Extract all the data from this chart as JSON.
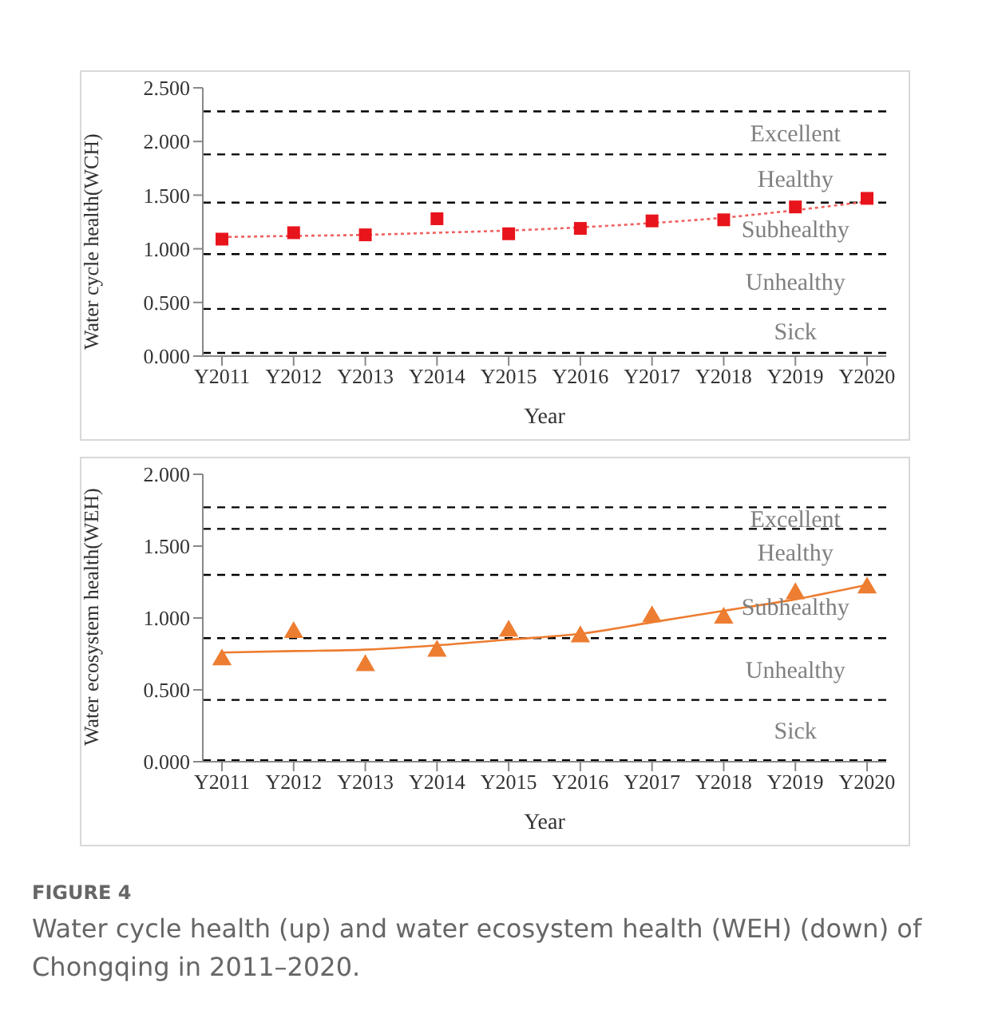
{
  "chart_data": [
    {
      "type": "scatter",
      "xlabel": "Year",
      "ylabel": "Water cycle health(WCH)",
      "categories": [
        "Y2011",
        "Y2012",
        "Y2013",
        "Y2014",
        "Y2015",
        "Y2016",
        "Y2017",
        "Y2018",
        "Y2019",
        "Y2020"
      ],
      "marker": "square",
      "grid": false,
      "legend": false,
      "series": [
        {
          "type": "scatter",
          "color": "#e8141c",
          "values": [
            1.09,
            1.15,
            1.13,
            1.28,
            1.14,
            1.19,
            1.26,
            1.27,
            1.39,
            1.47
          ]
        },
        {
          "type": "line",
          "color": "#f06060",
          "line_style": "dotted",
          "marker": "none",
          "values": [
            1.11,
            1.12,
            1.13,
            1.15,
            1.17,
            1.2,
            1.24,
            1.29,
            1.36,
            1.44
          ]
        }
      ],
      "ylim": [
        0,
        2.5
      ],
      "yticks": [
        {
          "value": 0,
          "label": "0.000"
        },
        {
          "value": 0.5,
          "label": "0.500"
        },
        {
          "value": 1,
          "label": "1.000"
        },
        {
          "value": 1.5,
          "label": "1.500"
        },
        {
          "value": 2,
          "label": "2.000"
        },
        {
          "value": 2.5,
          "label": "2.500"
        }
      ],
      "ref_lines": [
        {
          "axis": "y",
          "value": 2.28,
          "color": "#000000",
          "line_style": "dashed"
        },
        {
          "axis": "y",
          "value": 1.88,
          "color": "#000000",
          "line_style": "dashed"
        },
        {
          "axis": "y",
          "value": 1.43,
          "color": "#000000",
          "line_style": "dashed"
        },
        {
          "axis": "y",
          "value": 0.95,
          "color": "#000000",
          "line_style": "dashed"
        },
        {
          "axis": "y",
          "value": 0.44,
          "color": "#000000",
          "line_style": "dashed"
        },
        {
          "axis": "y",
          "value": 0.03,
          "color": "#000000",
          "line_style": "dashed"
        }
      ],
      "annotations": [
        "Excellent",
        "Healthy",
        "Subhealthy",
        "Unhealthy",
        "Sick"
      ]
    },
    {
      "type": "scatter",
      "xlabel": "Year",
      "ylabel": "Water ecosystem health(WEH)",
      "categories": [
        "Y2011",
        "Y2012",
        "Y2013",
        "Y2014",
        "Y2015",
        "Y2016",
        "Y2017",
        "Y2018",
        "Y2019",
        "Y2020"
      ],
      "marker": "triangle",
      "grid": false,
      "legend": false,
      "series": [
        {
          "type": "scatter",
          "color": "#ed7d31",
          "values": [
            0.71,
            0.9,
            0.67,
            0.77,
            0.91,
            0.87,
            1.01,
            1.0,
            1.17,
            1.21
          ]
        },
        {
          "type": "line",
          "color": "#ed7d31",
          "line_style": "solid",
          "marker": "none",
          "values": [
            0.76,
            0.77,
            0.78,
            0.81,
            0.85,
            0.89,
            0.97,
            1.05,
            1.13,
            1.23
          ]
        }
      ],
      "ylim": [
        0,
        2
      ],
      "yticks": [
        {
          "value": 0,
          "label": "0.000"
        },
        {
          "value": 0.5,
          "label": "0.500"
        },
        {
          "value": 1,
          "label": "1.000"
        },
        {
          "value": 1.5,
          "label": "1.500"
        },
        {
          "value": 2,
          "label": "2.000"
        }
      ],
      "ref_lines": [
        {
          "axis": "y",
          "value": 1.77,
          "color": "#000000",
          "line_style": "dashed"
        },
        {
          "axis": "y",
          "value": 1.62,
          "color": "#000000",
          "line_style": "dashed"
        },
        {
          "axis": "y",
          "value": 1.3,
          "color": "#000000",
          "line_style": "dashed"
        },
        {
          "axis": "y",
          "value": 0.86,
          "color": "#000000",
          "line_style": "dashed"
        },
        {
          "axis": "y",
          "value": 0.43,
          "color": "#000000",
          "line_style": "dashed"
        },
        {
          "axis": "y",
          "value": 0.01,
          "color": "#000000",
          "line_style": "dashed"
        }
      ],
      "annotations": [
        "Excellent",
        "Healthy",
        "Subhealthy",
        "Unhealthy",
        "Sick",
        "FIGURE 4",
        "Water cycle health (up) and water ecosystem health (WEH) (down) of Chongqing in 2011–2020."
      ]
    }
  ]
}
